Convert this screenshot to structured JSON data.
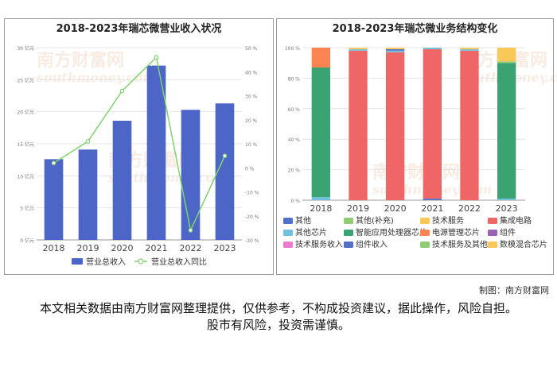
{
  "watermark": {
    "brand": "南方财富网",
    "domain": "southmoney.com"
  },
  "left": {
    "title": "2018-2023年瑞芯微营业收入状况"
  },
  "right": {
    "title": "2018-2023年瑞芯微业务结构变化"
  },
  "credit": "制图：南方财富网",
  "disclaimer": "本文相关数据由南方财富网整理提供，仅供参考，不构成投资建议，据此操作，风险自担。股市有风险，投资需谨慎。",
  "colors": {
    "bar": "#4e65c8",
    "line": "#7cd46a",
    "seg_other": "#5470c6",
    "seg_other_sup": "#91cc75",
    "seg_tech_service": "#fac858",
    "seg_ic": "#ee6666",
    "seg_other_chip": "#73c0de",
    "seg_ai_soc": "#3ba272",
    "seg_pmic": "#fc8452",
    "seg_module": "#9a60b4",
    "seg_tech_service_income": "#ea7ccc",
    "seg_module_income": "#5470c6",
    "seg_tech_service_other": "#91cc75",
    "seg_mixed_chip": "#fac858"
  },
  "chart_data": [
    {
      "type": "bar",
      "title": "2018-2023年瑞芯微营业收入状况",
      "categories": [
        "2018",
        "2019",
        "2020",
        "2021",
        "2022",
        "2023"
      ],
      "ylim": [
        0,
        30
      ],
      "yticks": [
        "0 亿元",
        "5 亿元",
        "10 亿元",
        "15 亿元",
        "20 亿元",
        "25 亿元",
        "30 亿元"
      ],
      "y2lim": [
        -30,
        50
      ],
      "y2ticks": [
        "-30 %",
        "-20 %",
        "-10 %",
        "0 %",
        "10 %",
        "20 %",
        "30 %",
        "40 %",
        "50 %"
      ],
      "series": [
        {
          "name": "营业总收入",
          "type": "bar",
          "axis": "left",
          "values": [
            12.6,
            14.1,
            18.6,
            27.2,
            20.3,
            21.3
          ]
        },
        {
          "name": "营业总收入同比",
          "type": "line",
          "axis": "right",
          "values": [
            2,
            11,
            32,
            46,
            -26,
            5
          ]
        }
      ],
      "legend": "bottom",
      "grid": true
    },
    {
      "type": "bar",
      "stacked": true,
      "title": "2018-2023年瑞芯微业务结构变化",
      "categories": [
        "2018",
        "2019",
        "2020",
        "2021",
        "2022",
        "2023"
      ],
      "ylim": [
        0,
        100
      ],
      "yticks": [
        "0 %",
        "20 %",
        "40 %",
        "60 %",
        "80 %",
        "100 %"
      ],
      "series": [
        {
          "name": "其他",
          "color_key": "seg_other",
          "values": [
            0,
            0,
            0,
            1,
            0,
            0
          ]
        },
        {
          "name": "其他(补充)",
          "color_key": "seg_other_sup",
          "values": [
            0,
            0,
            0,
            0,
            0,
            0
          ]
        },
        {
          "name": "技术服务",
          "color_key": "seg_tech_service",
          "values": [
            0,
            0,
            0,
            0,
            0,
            0
          ]
        },
        {
          "name": "集成电路",
          "color_key": "seg_ic",
          "values": [
            0,
            98,
            97,
            98,
            98,
            0
          ]
        },
        {
          "name": "其他芯片",
          "color_key": "seg_other_chip",
          "values": [
            2,
            1,
            1,
            1,
            1,
            1
          ]
        },
        {
          "name": "智能应用处理器芯片",
          "color_key": "seg_ai_soc",
          "values": [
            85,
            0,
            0,
            0,
            0,
            89
          ]
        },
        {
          "name": "电源管理芯片",
          "color_key": "seg_pmic",
          "values": [
            13,
            0,
            0,
            0,
            0,
            0
          ]
        },
        {
          "name": "组件",
          "color_key": "seg_module",
          "values": [
            0,
            0,
            0,
            0,
            0,
            0
          ]
        },
        {
          "name": "技术服务收入",
          "color_key": "seg_tech_service_income",
          "values": [
            0,
            0,
            0,
            0,
            0,
            0
          ]
        },
        {
          "name": "组件收入",
          "color_key": "seg_module_income",
          "values": [
            0,
            0,
            1,
            0,
            0,
            0
          ]
        },
        {
          "name": "技术服务及其他",
          "color_key": "seg_tech_service_other",
          "values": [
            0,
            0,
            0,
            0,
            0,
            1
          ]
        },
        {
          "name": "数模混合芯片",
          "color_key": "seg_mixed_chip",
          "values": [
            0,
            1,
            1,
            0,
            1,
            9
          ]
        }
      ],
      "legend": "bottom",
      "grid": true
    }
  ]
}
